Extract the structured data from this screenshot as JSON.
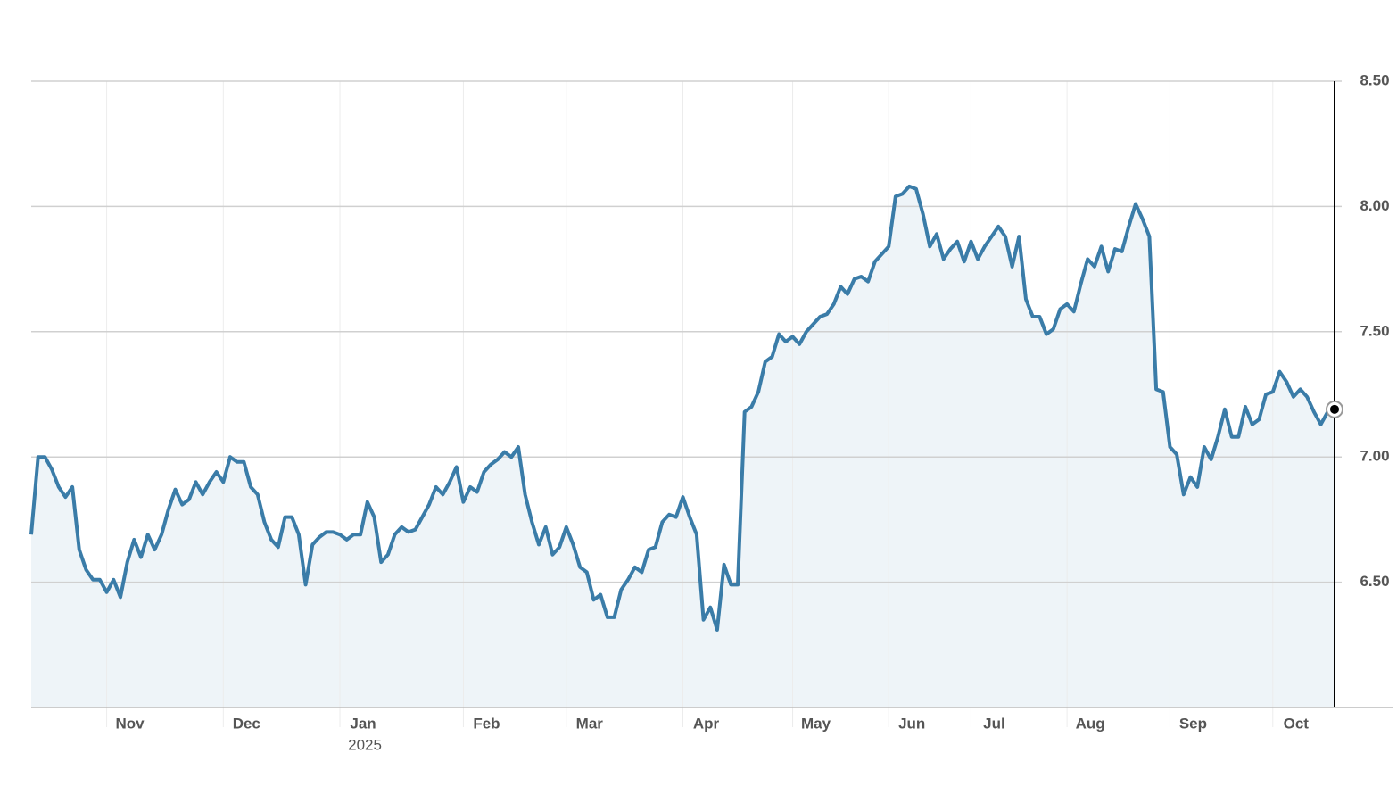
{
  "chart_data": {
    "type": "line",
    "series": [
      {
        "color": "#3a7ca8",
        "fill": "#eef4f8",
        "values": [
          6.69,
          7.0,
          7.0,
          6.95,
          6.88,
          6.84,
          6.88,
          6.63,
          6.55,
          6.51,
          6.51,
          6.46,
          6.51,
          6.44,
          6.58,
          6.67,
          6.6,
          6.69,
          6.63,
          6.69,
          6.79,
          6.87,
          6.81,
          6.83,
          6.9,
          6.85,
          6.9,
          6.94,
          6.9,
          7.0,
          6.98,
          6.98,
          6.88,
          6.85,
          6.74,
          6.67,
          6.64,
          6.76,
          6.76,
          6.69,
          6.49,
          6.65,
          6.68,
          6.7,
          6.7,
          6.69,
          6.67,
          6.69,
          6.69,
          6.82,
          6.76,
          6.58,
          6.61,
          6.69,
          6.72,
          6.7,
          6.71,
          6.76,
          6.81,
          6.88,
          6.85,
          6.9,
          6.96,
          6.82,
          6.88,
          6.86,
          6.94,
          6.97,
          6.99,
          7.02,
          7.0,
          7.04,
          6.85,
          6.74,
          6.65,
          6.72,
          6.61,
          6.64,
          6.72,
          6.65,
          6.56,
          6.54,
          6.43,
          6.45,
          6.36,
          6.36,
          6.47,
          6.51,
          6.56,
          6.54,
          6.63,
          6.64,
          6.74,
          6.77,
          6.76,
          6.84,
          6.76,
          6.69,
          6.35,
          6.4,
          6.31,
          6.57,
          6.49,
          6.49,
          7.18,
          7.2,
          7.26,
          7.38,
          7.4,
          7.49,
          7.46,
          7.48,
          7.45,
          7.5,
          7.53,
          7.56,
          7.57,
          7.61,
          7.68,
          7.65,
          7.71,
          7.72,
          7.7,
          7.78,
          7.81,
          7.84,
          8.04,
          8.05,
          8.08,
          8.07,
          7.97,
          7.84,
          7.89,
          7.79,
          7.83,
          7.86,
          7.78,
          7.86,
          7.79,
          7.84,
          7.88,
          7.92,
          7.88,
          7.76,
          7.88,
          7.63,
          7.56,
          7.56,
          7.49,
          7.51,
          7.59,
          7.61,
          7.58,
          7.69,
          7.79,
          7.76,
          7.84,
          7.74,
          7.83,
          7.82,
          7.92,
          8.01,
          7.95,
          7.88,
          7.27,
          7.26,
          7.04,
          7.01,
          6.85,
          6.92,
          6.88,
          7.04,
          6.99,
          7.08,
          7.19,
          7.08,
          7.08,
          7.2,
          7.13,
          7.15,
          7.25,
          7.26,
          7.34,
          7.3,
          7.24,
          7.27,
          7.24,
          7.18,
          7.13,
          7.18,
          7.19
        ]
      }
    ],
    "xlim": [
      0,
      190
    ],
    "xticks": [
      {
        "value": 11,
        "label": "Nov"
      },
      {
        "value": 28,
        "label": "Dec"
      },
      {
        "value": 45,
        "label": "Jan",
        "sublabel": "2025"
      },
      {
        "value": 63,
        "label": "Feb"
      },
      {
        "value": 78,
        "label": "Mar"
      },
      {
        "value": 95,
        "label": "Apr"
      },
      {
        "value": 111,
        "label": "May"
      },
      {
        "value": 125,
        "label": "Jun"
      },
      {
        "value": 137,
        "label": "Jul"
      },
      {
        "value": 151,
        "label": "Aug"
      },
      {
        "value": 166,
        "label": "Sep"
      },
      {
        "value": 181,
        "label": "Oct"
      }
    ],
    "ylim": [
      6.0,
      8.5
    ],
    "yticks": [
      {
        "value": 6.5,
        "label": "6.50"
      },
      {
        "value": 7.0,
        "label": "7.00"
      },
      {
        "value": 7.5,
        "label": "7.50"
      },
      {
        "value": 8.0,
        "label": "8.00"
      },
      {
        "value": 8.5,
        "label": "8.50"
      }
    ],
    "grid": true,
    "yaxis_side": "right",
    "end_marker": true
  }
}
